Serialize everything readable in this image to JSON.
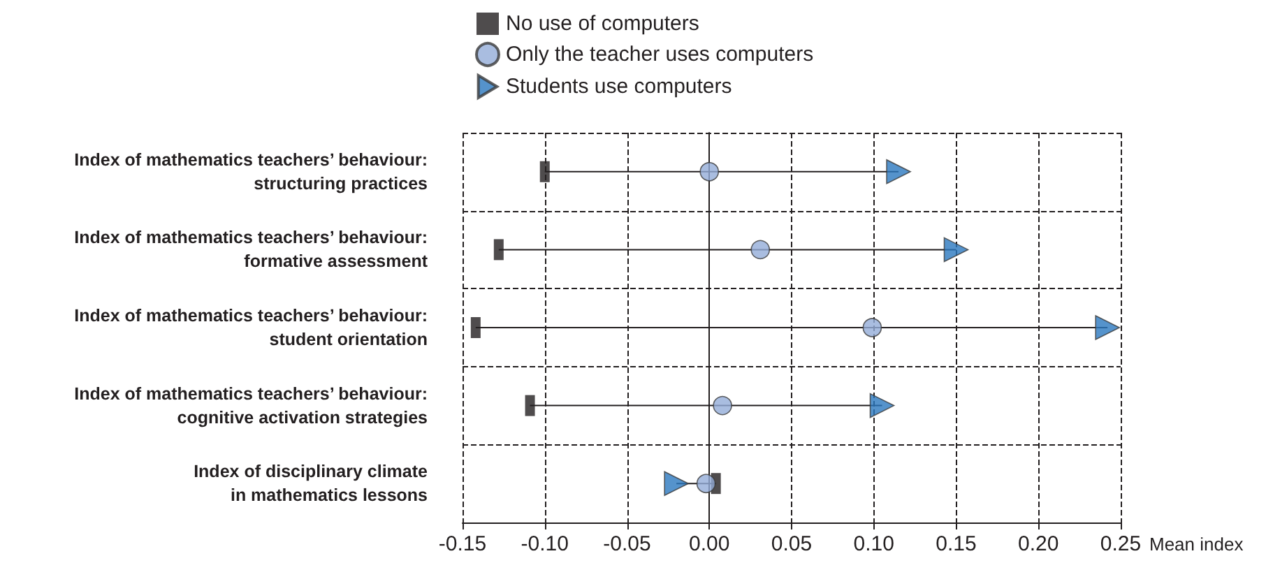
{
  "chart_data": {
    "type": "scatter",
    "xlabel": "Mean index",
    "orientation": "horizontal",
    "categories": [
      "Index of mathematics teachers’ behaviour:\nstructuring practices",
      "Index of mathematics teachers’ behaviour:\nformative assessment",
      "Index of mathematics teachers’ behaviour:\nstudent orientation",
      "Index of mathematics teachers’ behaviour:\ncognitive activation strategies",
      "Index of disciplinary climate\nin mathematics lessons"
    ],
    "series": [
      {
        "name": "No use of computers",
        "color": "#231f20",
        "marker": "square",
        "values": [
          -0.1,
          -0.128,
          -0.142,
          -0.109,
          0.004
        ]
      },
      {
        "name": "Only the teacher uses computers",
        "color": "#94acd8",
        "marker": "circle",
        "values": [
          0.0,
          0.031,
          0.099,
          0.008,
          -0.002
        ]
      },
      {
        "name": "Students use computers",
        "color": "#2a78bf",
        "marker": "triangle",
        "values": [
          0.115,
          0.15,
          0.242,
          0.105,
          -0.02
        ]
      }
    ],
    "xlim": [
      -0.15,
      0.25
    ],
    "xticks": [
      {
        "value": -0.15,
        "label": "-0.15"
      },
      {
        "value": -0.1,
        "label": "-0.10"
      },
      {
        "value": -0.05,
        "label": "-0.05"
      },
      {
        "value": 0,
        "label": "0.00"
      },
      {
        "value": 0.05,
        "label": "0.05"
      },
      {
        "value": 0.1,
        "label": "0.10"
      },
      {
        "value": 0.15,
        "label": "0.15"
      },
      {
        "value": 0.2,
        "label": "0.20"
      },
      {
        "value": 0.25,
        "label": "0.25"
      }
    ],
    "grid": true,
    "legend": "top"
  }
}
